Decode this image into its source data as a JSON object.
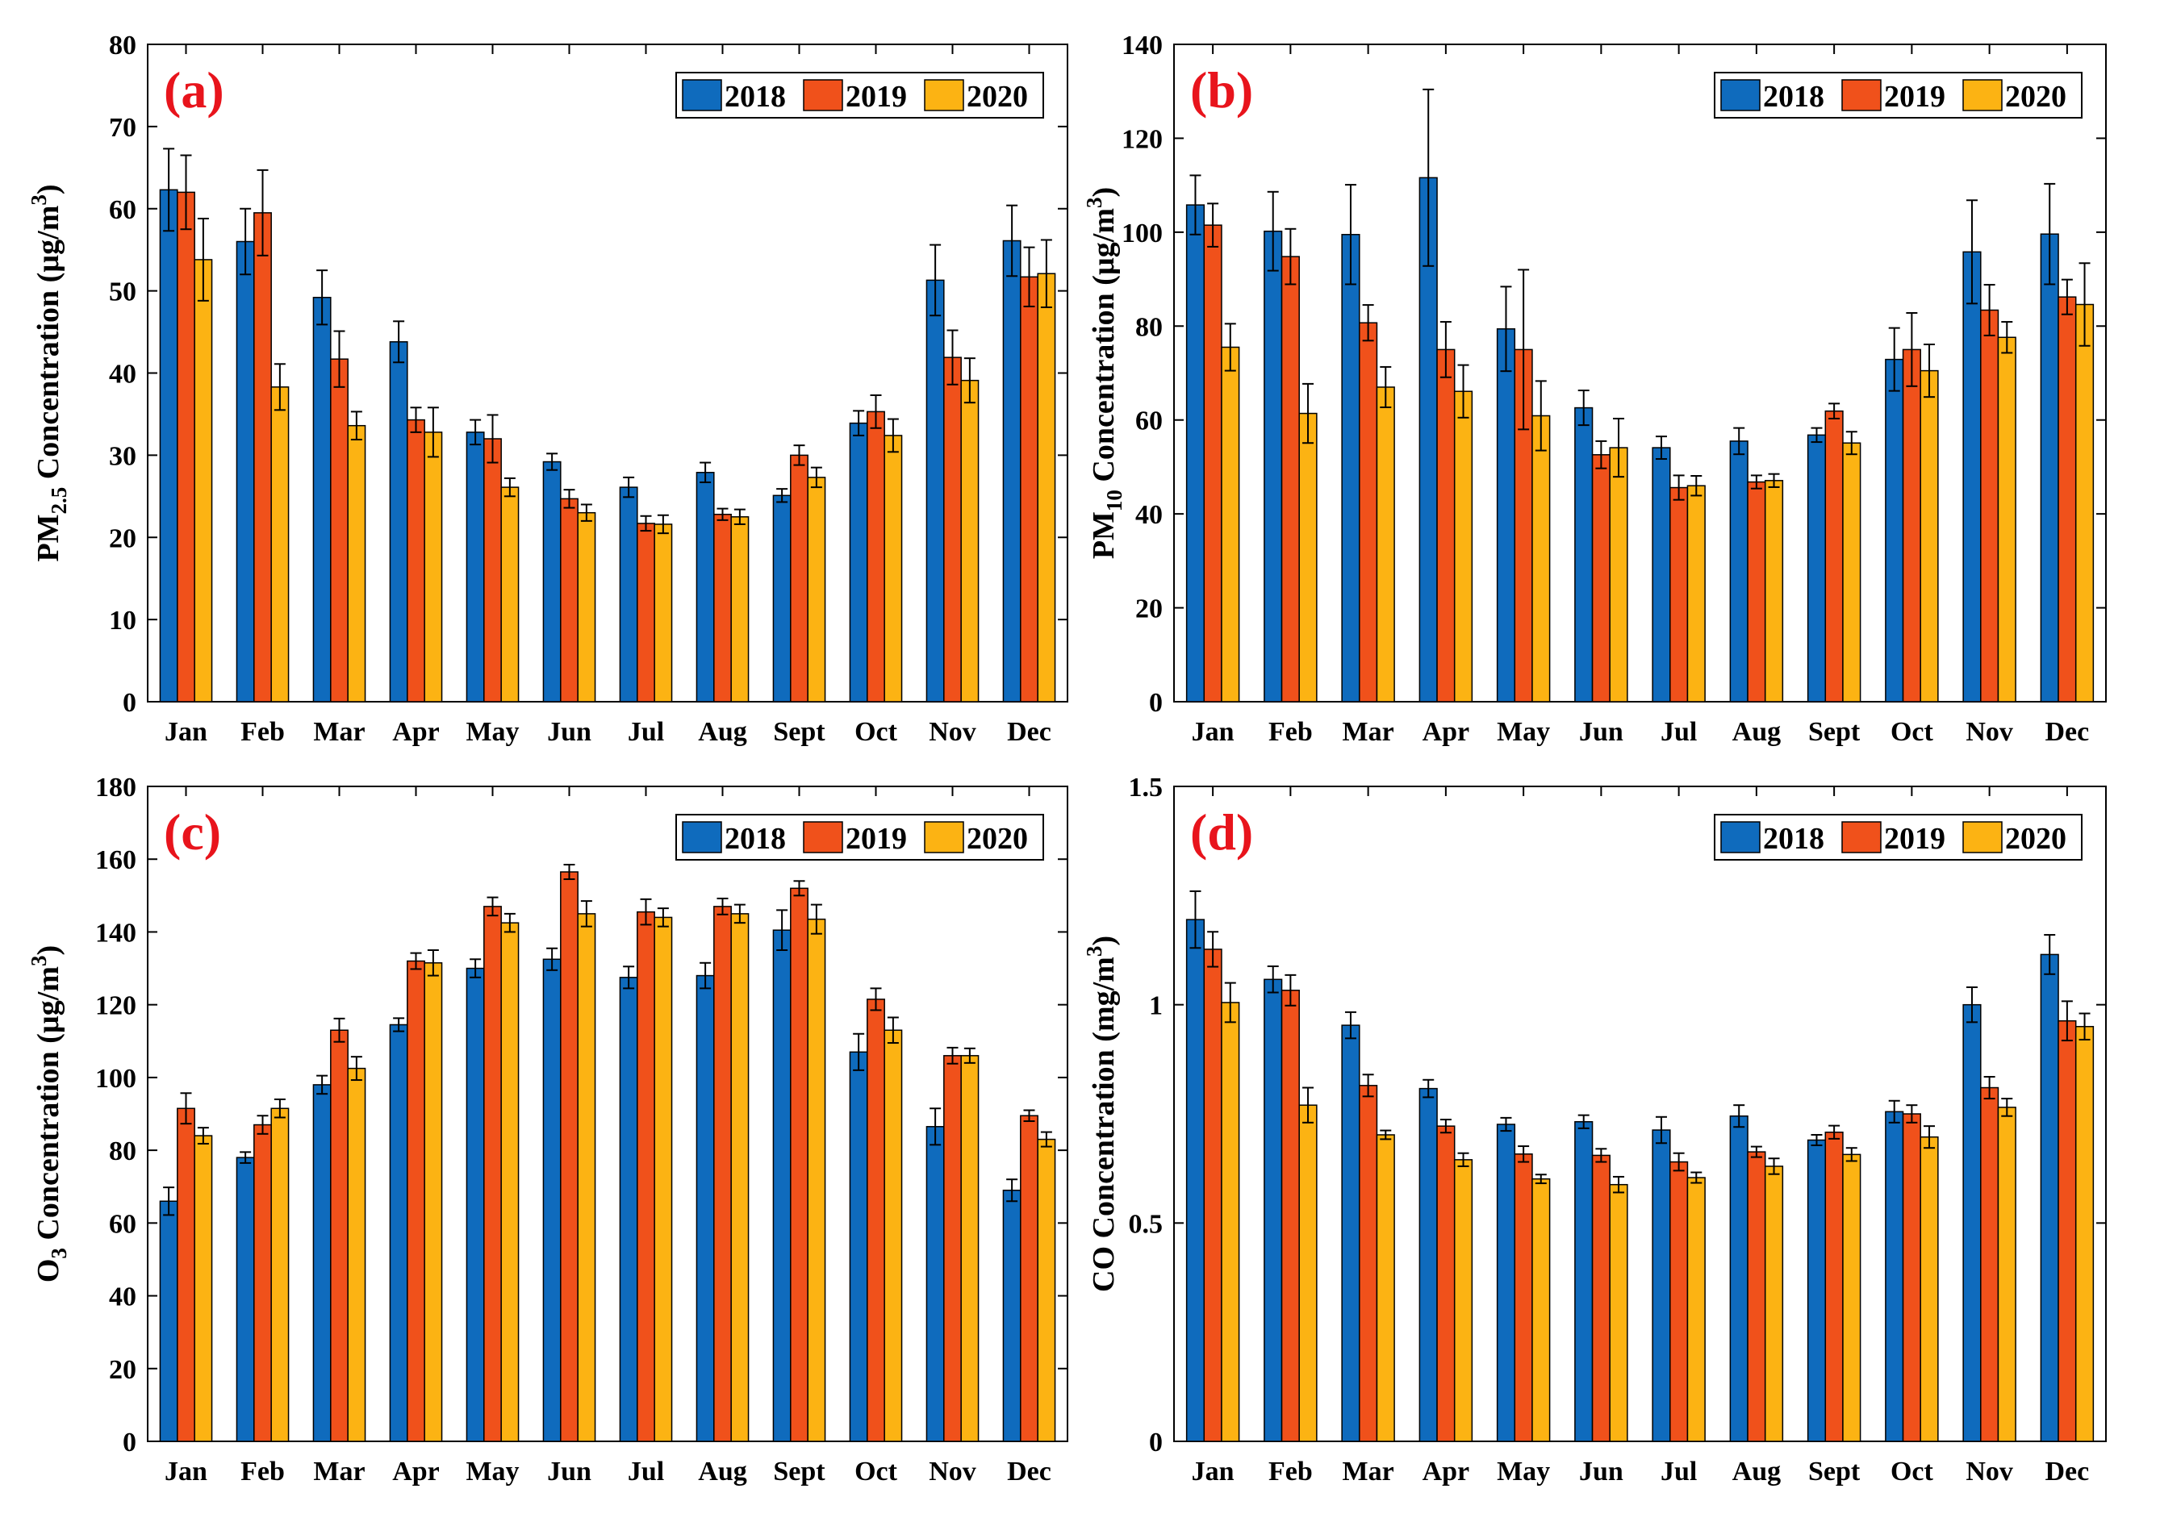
{
  "colors": {
    "2018": "#0f6bbd",
    "2019": "#f0511b",
    "2020": "#fcb313"
  },
  "chart_data": [
    {
      "type": "bar",
      "panel_label": "(a)",
      "ylabel": {
        "main": "PM",
        "sub": "2.5",
        "rest": " Concentration (µg/m",
        "sup": "3",
        "close": ")"
      },
      "ylim": [
        0,
        80
      ],
      "yticks": [
        "0",
        "10",
        "20",
        "30",
        "40",
        "50",
        "60",
        "70",
        "80"
      ],
      "legend_position": "top-right",
      "categories": [
        "Jan",
        "Feb",
        "Mar",
        "Apr",
        "May",
        "Jun",
        "Jul",
        "Aug",
        "Sept",
        "Oct",
        "Nov",
        "Dec"
      ],
      "series": [
        {
          "name": "2018",
          "values": [
            62.3,
            56.0,
            49.2,
            43.8,
            32.8,
            29.2,
            26.1,
            27.9,
            25.1,
            33.9,
            51.3,
            56.1
          ],
          "errors": [
            5.0,
            4.0,
            3.3,
            2.5,
            1.5,
            1.0,
            1.2,
            1.2,
            0.8,
            1.5,
            4.3,
            4.3
          ]
        },
        {
          "name": "2019",
          "values": [
            62.0,
            59.5,
            41.7,
            34.3,
            32.0,
            24.7,
            21.7,
            22.8,
            30.0,
            35.3,
            41.9,
            51.7
          ],
          "errors": [
            4.5,
            5.2,
            3.4,
            1.5,
            2.9,
            1.1,
            0.9,
            0.7,
            1.2,
            2.0,
            3.3,
            3.6
          ]
        },
        {
          "name": "2020",
          "values": [
            53.8,
            38.3,
            33.6,
            32.8,
            26.1,
            23.0,
            21.6,
            22.5,
            27.3,
            32.4,
            39.1,
            52.1
          ],
          "errors": [
            5.0,
            2.8,
            1.7,
            3.0,
            1.1,
            1.0,
            1.1,
            0.9,
            1.2,
            2.0,
            2.7,
            4.1
          ]
        }
      ]
    },
    {
      "type": "bar",
      "panel_label": "(b)",
      "ylabel": {
        "main": "PM",
        "sub": "10",
        "rest": " Concentration (µg/m",
        "sup": "3",
        "close": ")"
      },
      "ylim": [
        0,
        140
      ],
      "yticks": [
        "0",
        "20",
        "40",
        "60",
        "80",
        "100",
        "120",
        "140"
      ],
      "legend_position": "top-right",
      "categories": [
        "Jan",
        "Feb",
        "Mar",
        "Apr",
        "May",
        "Jun",
        "Jul",
        "Aug",
        "Sept",
        "Oct",
        "Nov",
        "Dec"
      ],
      "series": [
        {
          "name": "2018",
          "values": [
            105.8,
            100.2,
            99.5,
            111.6,
            79.4,
            62.6,
            54.1,
            55.5,
            56.8,
            72.9,
            95.8,
            99.6
          ],
          "errors": [
            6.3,
            8.4,
            10.6,
            18.8,
            9.0,
            3.7,
            2.4,
            2.8,
            1.5,
            6.7,
            11.0,
            10.7
          ]
        },
        {
          "name": "2019",
          "values": [
            101.5,
            94.8,
            80.7,
            75.0,
            75.0,
            52.6,
            45.6,
            46.8,
            61.9,
            75.0,
            83.4,
            86.2
          ],
          "errors": [
            4.6,
            5.9,
            3.8,
            5.9,
            17.0,
            2.9,
            2.6,
            1.4,
            1.6,
            7.8,
            5.4,
            3.7
          ]
        },
        {
          "name": "2020",
          "values": [
            75.5,
            61.4,
            67.0,
            66.1,
            60.9,
            54.1,
            46.0,
            47.1,
            55.1,
            70.5,
            77.6,
            84.6
          ],
          "errors": [
            5.0,
            6.3,
            4.3,
            5.6,
            7.4,
            6.2,
            2.1,
            1.4,
            2.4,
            5.6,
            3.3,
            8.8
          ]
        }
      ]
    },
    {
      "type": "bar",
      "panel_label": "(c)",
      "ylabel": {
        "main": "O",
        "sub": "3",
        "rest": " Concentration (µg/m",
        "sup": "3",
        "close": ")"
      },
      "ylim": [
        0,
        180
      ],
      "yticks": [
        "0",
        "20",
        "40",
        "60",
        "80",
        "100",
        "120",
        "140",
        "160",
        "180"
      ],
      "legend_position": "top-right",
      "categories": [
        "Jan",
        "Feb",
        "Mar",
        "Apr",
        "May",
        "Jun",
        "Jul",
        "Aug",
        "Sept",
        "Oct",
        "Nov",
        "Dec"
      ],
      "series": [
        {
          "name": "2018",
          "values": [
            66.0,
            78.0,
            98.0,
            114.5,
            130.0,
            132.5,
            127.5,
            128.0,
            140.5,
            107.0,
            86.5,
            69.0
          ],
          "errors": [
            3.8,
            1.5,
            2.5,
            1.8,
            2.5,
            3.0,
            3.0,
            3.5,
            5.5,
            5.0,
            5.0,
            3.0
          ]
        },
        {
          "name": "2019",
          "values": [
            91.5,
            87.0,
            113.0,
            132.0,
            147.0,
            156.5,
            145.5,
            147.0,
            152.0,
            121.5,
            106.0,
            89.5
          ],
          "errors": [
            4.2,
            2.5,
            3.2,
            2.2,
            2.5,
            2.0,
            3.5,
            2.2,
            2.0,
            3.0,
            2.2,
            1.5
          ]
        },
        {
          "name": "2020",
          "values": [
            84.0,
            91.5,
            102.5,
            131.5,
            142.5,
            145.0,
            144.0,
            145.0,
            143.5,
            113.0,
            106.0,
            83.0
          ],
          "errors": [
            2.2,
            2.5,
            3.2,
            3.5,
            2.5,
            3.5,
            2.5,
            2.5,
            4.0,
            3.5,
            2.0,
            2.0
          ]
        }
      ]
    },
    {
      "type": "bar",
      "panel_label": "(d)",
      "ylabel": {
        "main": "CO Concentration (mg/m",
        "sup": "3",
        "close": ")"
      },
      "ylim": [
        0,
        1.5
      ],
      "yticks": [
        "0",
        "0.5",
        "1",
        "1.5"
      ],
      "legend_position": "top-right",
      "categories": [
        "Jan",
        "Feb",
        "Mar",
        "Apr",
        "May",
        "Jun",
        "Jul",
        "Aug",
        "Sept",
        "Oct",
        "Nov",
        "Dec"
      ],
      "series": [
        {
          "name": "2018",
          "values": [
            1.195,
            1.058,
            0.953,
            0.808,
            0.726,
            0.732,
            0.713,
            0.745,
            0.69,
            0.755,
            1.0,
            1.115
          ],
          "errors": [
            0.065,
            0.03,
            0.03,
            0.02,
            0.015,
            0.015,
            0.03,
            0.025,
            0.012,
            0.025,
            0.04,
            0.045
          ]
        },
        {
          "name": "2019",
          "values": [
            1.127,
            1.033,
            0.815,
            0.722,
            0.658,
            0.655,
            0.64,
            0.663,
            0.708,
            0.75,
            0.81,
            0.963
          ],
          "errors": [
            0.04,
            0.035,
            0.025,
            0.015,
            0.018,
            0.015,
            0.02,
            0.012,
            0.015,
            0.02,
            0.025,
            0.045
          ]
        },
        {
          "name": "2020",
          "values": [
            1.005,
            0.77,
            0.702,
            0.645,
            0.601,
            0.588,
            0.604,
            0.63,
            0.657,
            0.697,
            0.765,
            0.95
          ],
          "errors": [
            0.045,
            0.04,
            0.01,
            0.015,
            0.01,
            0.018,
            0.012,
            0.018,
            0.015,
            0.025,
            0.02,
            0.03
          ]
        }
      ]
    }
  ]
}
